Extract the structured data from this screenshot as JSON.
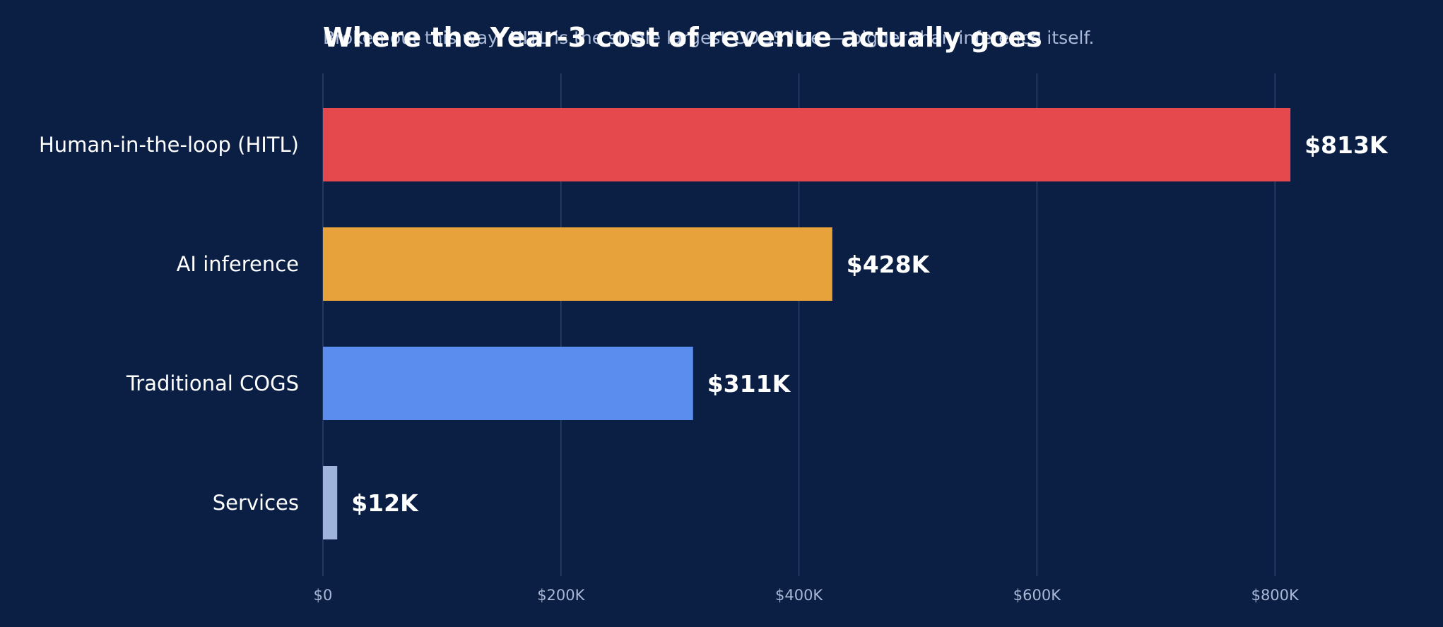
{
  "chart_data": {
    "type": "bar",
    "orientation": "horizontal",
    "title": "Where the Year-3 cost of revenue actually goes",
    "subtitle": "Broken out this way, HITL is the single largest COGS line — bigger than inference itself.",
    "categories": [
      "Human-in-the-loop (HITL)",
      "AI inference",
      "Traditional COGS",
      "Services"
    ],
    "values": [
      813,
      428,
      311,
      12
    ],
    "value_labels": [
      "$813K",
      "$428K",
      "$311K",
      "$12K"
    ],
    "value_unit": "thousand USD",
    "bar_colors": [
      "#e5484d",
      "#e8a23b",
      "#5b8def",
      "#9fb4da"
    ],
    "xlim": [
      0,
      900
    ],
    "x_ticks": [
      0,
      200,
      400,
      600,
      800
    ],
    "x_tick_labels": [
      "$0",
      "$200K",
      "$400K",
      "$600K",
      "$800K"
    ],
    "xlabel": "",
    "ylabel": "",
    "grid": "vertical gridlines",
    "legend": "none"
  },
  "colors": {
    "background": "#0b1f45",
    "grid": "#2e4770",
    "text": "#ffffff",
    "muted_text": "#a9b8d6"
  }
}
